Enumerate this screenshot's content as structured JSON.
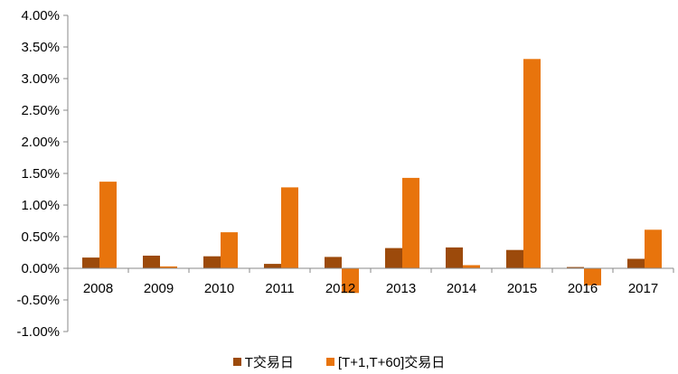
{
  "chart_data": {
    "type": "bar",
    "categories": [
      "2008",
      "2009",
      "2010",
      "2011",
      "2012",
      "2013",
      "2014",
      "2015",
      "2016",
      "2017"
    ],
    "series": [
      {
        "name": "T交易日",
        "color": "#9c4a0b",
        "values": [
          0.17,
          0.2,
          0.19,
          0.07,
          0.18,
          0.32,
          0.33,
          0.29,
          0.02,
          0.15
        ]
      },
      {
        "name": "[T+1,T+60]交易日",
        "color": "#e8740c",
        "values": [
          1.37,
          0.03,
          0.57,
          1.28,
          -0.39,
          1.43,
          0.05,
          3.31,
          -0.27,
          0.61
        ]
      }
    ],
    "ylim": [
      -1.0,
      4.0
    ],
    "yticks": [
      -1.0,
      -0.5,
      0.0,
      0.5,
      1.0,
      1.5,
      2.0,
      2.5,
      3.0,
      3.5,
      4.0
    ],
    "ytick_labels": [
      "-1.00%",
      "-0.50%",
      "0.00%",
      "0.50%",
      "1.00%",
      "1.50%",
      "2.00%",
      "2.50%",
      "3.00%",
      "3.50%",
      "4.00%"
    ],
    "y_unit": "%",
    "grid": false,
    "legend_position": "bottom"
  }
}
